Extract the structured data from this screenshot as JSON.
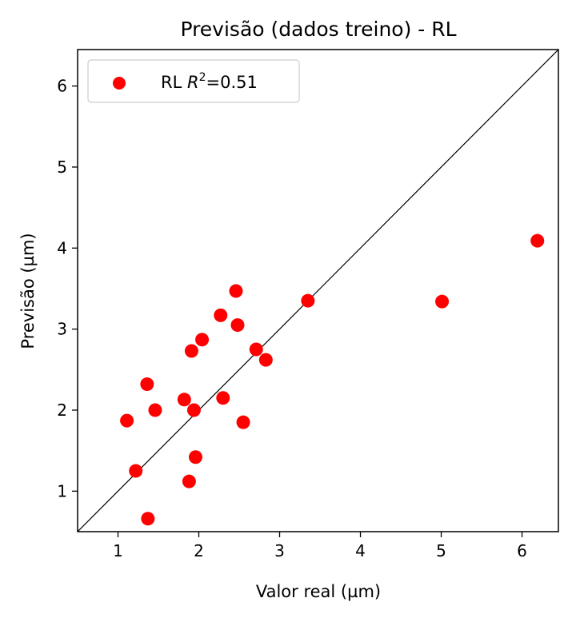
{
  "chart_data": {
    "type": "scatter",
    "title": "Previsão (dados treino) - RL",
    "xlabel": "Valor real (µm)",
    "ylabel": "Previsão (µm)",
    "xlim": [
      0.5,
      6.45
    ],
    "ylim": [
      0.5,
      6.45
    ],
    "x_ticks": [
      "1",
      "2",
      "3",
      "4",
      "5",
      "6"
    ],
    "y_ticks": [
      "1",
      "2",
      "3",
      "4",
      "5",
      "6"
    ],
    "grid": false,
    "legend_position": "top-left",
    "reference_line": "y = x",
    "series": [
      {
        "name_prefix": "RL ",
        "name_r": "R",
        "name_sup": "2",
        "name_suffix": "=0.51",
        "color": "#ff0000",
        "points": [
          {
            "x": 1.11,
            "y": 1.87
          },
          {
            "x": 1.22,
            "y": 1.25
          },
          {
            "x": 1.36,
            "y": 2.32
          },
          {
            "x": 1.37,
            "y": 0.66
          },
          {
            "x": 1.46,
            "y": 2.0
          },
          {
            "x": 1.82,
            "y": 2.13
          },
          {
            "x": 1.88,
            "y": 1.12
          },
          {
            "x": 1.91,
            "y": 2.73
          },
          {
            "x": 1.94,
            "y": 2.0
          },
          {
            "x": 1.96,
            "y": 1.42
          },
          {
            "x": 2.04,
            "y": 2.87
          },
          {
            "x": 2.27,
            "y": 3.17
          },
          {
            "x": 2.3,
            "y": 2.15
          },
          {
            "x": 2.46,
            "y": 3.47
          },
          {
            "x": 2.48,
            "y": 3.05
          },
          {
            "x": 2.55,
            "y": 1.85
          },
          {
            "x": 2.71,
            "y": 2.75
          },
          {
            "x": 2.83,
            "y": 2.62
          },
          {
            "x": 3.35,
            "y": 3.35
          },
          {
            "x": 5.01,
            "y": 3.34
          },
          {
            "x": 6.19,
            "y": 4.09
          }
        ]
      }
    ]
  }
}
